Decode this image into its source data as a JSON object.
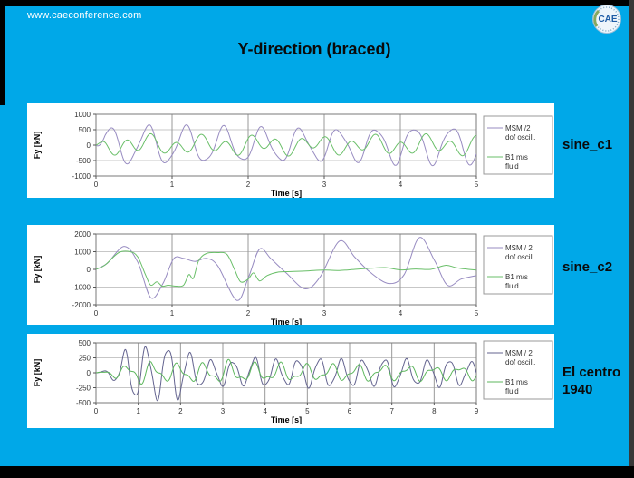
{
  "page": {
    "background_color": "#00a8e8",
    "top_bar_color": "#000000",
    "bottom_bar_color": "#000000",
    "right_edge_color": "#383838"
  },
  "header": {
    "url": "www.caeconference.com",
    "logo": {
      "text": "CAE"
    }
  },
  "title": "Y-direction (braced)",
  "chart_data": [
    {
      "type": "line",
      "name": "sine_c1",
      "side_label": "sine_c1",
      "xlabel": "Time  [s]",
      "ylabel": "Fy [kN]",
      "xlim": [
        0,
        5
      ],
      "ylim": [
        -1000,
        1000
      ],
      "xticks": [
        0,
        1,
        2,
        3,
        4,
        5
      ],
      "yticks": [
        1000,
        500,
        0,
        -500,
        -1000
      ],
      "grid": true,
      "legend_position": "right",
      "series": [
        {
          "name": "MSM /2 dof oscill.",
          "legend_lines": [
            "MSM /2",
            "dof oscill."
          ],
          "color": "#978bc1",
          "synth": {
            "components": [
              {
                "amp": 580,
                "freq": 2.0,
                "phase": -0.69
              },
              {
                "amp": 90,
                "freq": 4.2,
                "phase": 1.2
              }
            ],
            "envelope": [
              [
                0,
                0
              ],
              [
                0.12,
                0.95
              ],
              [
                0.7,
                1.05
              ],
              [
                2.0,
                0.92
              ],
              [
                3.3,
                0.85
              ],
              [
                4.0,
                1.0
              ],
              [
                5,
                1.0
              ]
            ]
          }
        },
        {
          "name": "B1 m/s fluid",
          "legend_lines": [
            "B1 m/s",
            "fluid"
          ],
          "color": "#6abf69",
          "synth": {
            "components": [
              {
                "amp": 235,
                "freq": 3.05,
                "phase": 0.2
              },
              {
                "amp": 140,
                "freq": 1.35,
                "phase": 2.2
              }
            ],
            "envelope": [
              [
                0,
                0
              ],
              [
                0.15,
                0.8
              ],
              [
                0.5,
                1.2
              ],
              [
                0.9,
                0.9
              ],
              [
                2,
                1.0
              ],
              [
                3,
                0.9
              ],
              [
                4,
                1.0
              ],
              [
                5,
                1.0
              ]
            ]
          }
        }
      ]
    },
    {
      "type": "line",
      "name": "sine_c2",
      "side_label": "sine_c2",
      "xlabel": "Time  [s]",
      "ylabel": "Fy [kN]",
      "xlim": [
        0,
        5
      ],
      "ylim": [
        -2000,
        2000
      ],
      "xticks": [
        0,
        1,
        2,
        3,
        4,
        5
      ],
      "yticks": [
        2000,
        1000,
        0,
        -1000,
        -2000
      ],
      "grid": true,
      "legend_position": "right",
      "series": [
        {
          "name": "MSM / 2 dof oscill.",
          "legend_lines": [
            "MSM / 2",
            "dof oscill."
          ],
          "color": "#978bc1",
          "points": [
            [
              0,
              0
            ],
            [
              0.15,
              350
            ],
            [
              0.37,
              1300
            ],
            [
              0.55,
              400
            ],
            [
              0.72,
              -1600
            ],
            [
              0.88,
              -800
            ],
            [
              1.02,
              600
            ],
            [
              1.15,
              620
            ],
            [
              1.3,
              450
            ],
            [
              1.45,
              620
            ],
            [
              1.6,
              200
            ],
            [
              1.85,
              -1750
            ],
            [
              2.0,
              -500
            ],
            [
              2.15,
              1150
            ],
            [
              2.3,
              600
            ],
            [
              2.5,
              -200
            ],
            [
              2.75,
              -1100
            ],
            [
              2.95,
              -400
            ],
            [
              3.2,
              1600
            ],
            [
              3.4,
              700
            ],
            [
              3.6,
              -150
            ],
            [
              3.85,
              -800
            ],
            [
              4.05,
              -300
            ],
            [
              4.25,
              1800
            ],
            [
              4.45,
              500
            ],
            [
              4.62,
              -900
            ],
            [
              4.8,
              -550
            ],
            [
              5,
              -350
            ]
          ]
        },
        {
          "name": "B1 m/s fluid",
          "legend_lines": [
            "B1 m/s",
            "fluid"
          ],
          "color": "#6abf69",
          "points": [
            [
              0,
              0
            ],
            [
              0.12,
              250
            ],
            [
              0.3,
              950
            ],
            [
              0.45,
              1000
            ],
            [
              0.55,
              700
            ],
            [
              0.65,
              -300
            ],
            [
              0.72,
              -900
            ],
            [
              0.8,
              -700
            ],
            [
              0.87,
              -950
            ],
            [
              0.95,
              -900
            ],
            [
              1.05,
              -950
            ],
            [
              1.15,
              -900
            ],
            [
              1.22,
              -300
            ],
            [
              1.28,
              -500
            ],
            [
              1.35,
              500
            ],
            [
              1.45,
              900
            ],
            [
              1.6,
              950
            ],
            [
              1.72,
              850
            ],
            [
              1.82,
              0
            ],
            [
              1.9,
              -700
            ],
            [
              2.0,
              -550
            ],
            [
              2.07,
              -200
            ],
            [
              2.15,
              -650
            ],
            [
              2.25,
              -350
            ],
            [
              2.4,
              -150
            ],
            [
              2.6,
              -120
            ],
            [
              2.8,
              -80
            ],
            [
              3.0,
              -40
            ],
            [
              3.2,
              -60
            ],
            [
              3.4,
              0
            ],
            [
              3.6,
              60
            ],
            [
              3.8,
              100
            ],
            [
              4.0,
              -30
            ],
            [
              4.2,
              20
            ],
            [
              4.4,
              0
            ],
            [
              4.6,
              230
            ],
            [
              4.75,
              80
            ],
            [
              5,
              -40
            ]
          ]
        }
      ]
    },
    {
      "type": "line",
      "name": "El centro 1940",
      "side_label": "El centro 1940",
      "xlabel": "Time  [s]",
      "ylabel": "Fy [kN]",
      "xlim": [
        0,
        9
      ],
      "ylim": [
        -500,
        500
      ],
      "xticks": [
        0,
        1,
        2,
        3,
        4,
        5,
        6,
        7,
        8,
        9
      ],
      "yticks": [
        500,
        250,
        0,
        -250,
        -500
      ],
      "grid": true,
      "legend_position": "right",
      "series": [
        {
          "name": "MSM / 2 dof oscill.",
          "legend_lines": [
            "MSM / 2",
            "dof oscill."
          ],
          "color": "#63638f",
          "synth": {
            "components": [
              {
                "amp": 430,
                "freq": 1.95,
                "phase": -0.4
              },
              {
                "amp": 60,
                "freq": 4.5,
                "phase": 0.8
              }
            ],
            "envelope": [
              [
                0,
                0
              ],
              [
                0.3,
                0.12
              ],
              [
                0.55,
                0.5
              ],
              [
                0.8,
                1.05
              ],
              [
                1.05,
                0.92
              ],
              [
                1.35,
                1.0
              ],
              [
                1.6,
                0.95
              ],
              [
                1.85,
                1.05
              ],
              [
                2.1,
                0.85
              ],
              [
                2.35,
                0.6
              ],
              [
                2.6,
                0.45
              ],
              [
                3.0,
                0.5
              ],
              [
                3.4,
                0.42
              ],
              [
                3.75,
                0.58
              ],
              [
                4.1,
                0.5
              ],
              [
                4.5,
                0.45
              ],
              [
                4.9,
                0.52
              ],
              [
                5.3,
                0.55
              ],
              [
                5.7,
                0.48
              ],
              [
                6.1,
                0.52
              ],
              [
                6.5,
                0.45
              ],
              [
                6.9,
                0.55
              ],
              [
                7.3,
                0.5
              ],
              [
                7.7,
                0.45
              ],
              [
                8.1,
                0.52
              ],
              [
                8.5,
                0.48
              ],
              [
                9,
                0.38
              ]
            ]
          }
        },
        {
          "name": "B1 m/s fluid",
          "legend_lines": [
            "B1 m/s",
            "fluid"
          ],
          "color": "#5db75d",
          "synth": {
            "components": [
              {
                "amp": 150,
                "freq": 1.65,
                "phase": 0.3
              },
              {
                "amp": 70,
                "freq": 3.2,
                "phase": 1.5
              }
            ],
            "envelope": [
              [
                0,
                0
              ],
              [
                0.25,
                0.2
              ],
              [
                0.6,
                0.6
              ],
              [
                1.0,
                0.95
              ],
              [
                1.3,
                1.0
              ],
              [
                1.7,
                0.75
              ],
              [
                2.1,
                0.9
              ],
              [
                2.6,
                0.8
              ],
              [
                3.1,
                1.05
              ],
              [
                3.6,
                0.85
              ],
              [
                4.1,
                0.8
              ],
              [
                4.6,
                0.85
              ],
              [
                5.1,
                0.7
              ],
              [
                5.6,
                0.75
              ],
              [
                6.1,
                0.7
              ],
              [
                6.6,
                0.75
              ],
              [
                7.1,
                0.65
              ],
              [
                7.6,
                0.7
              ],
              [
                8.1,
                0.6
              ],
              [
                8.6,
                0.65
              ],
              [
                9,
                0.6
              ]
            ]
          }
        }
      ]
    }
  ]
}
